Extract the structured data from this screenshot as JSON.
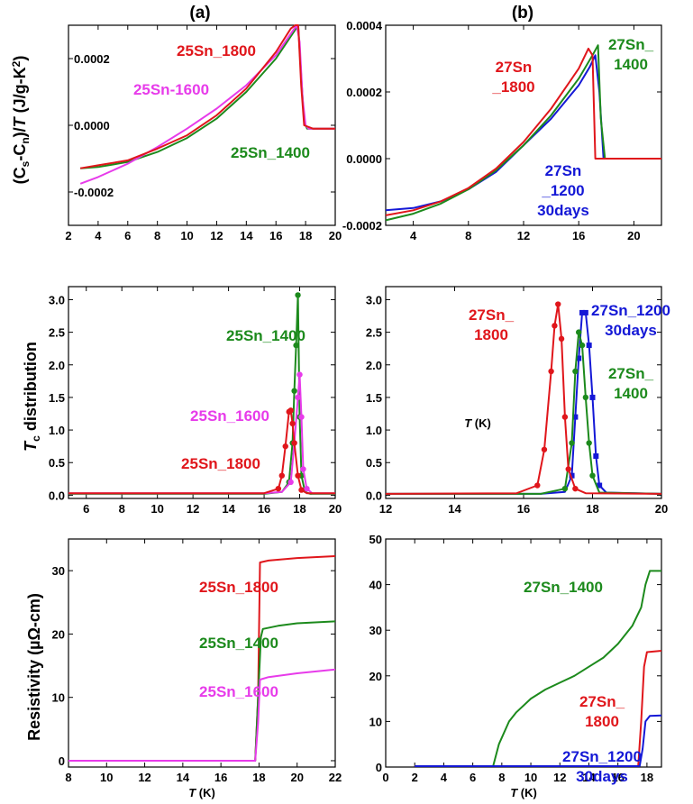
{
  "panel_titles": [
    "(a)",
    "(b)"
  ],
  "colors": {
    "red": "#e0161b",
    "green": "#1c8a1c",
    "magenta": "#e73bea",
    "blue": "#1418d6",
    "axis": "#000000"
  },
  "ylabels": {
    "top": "(Cₛ-Cₙ)/T (J/g-K²)",
    "middle": "T_c distribution",
    "bottom": "Resistivity (µΩ-cm)"
  },
  "chart_data": [
    {
      "id": "a1",
      "type": "line",
      "xlabel": "",
      "ylabel": "(Cs-Cn)/T (J/g-K2)",
      "xlim": [
        2,
        20
      ],
      "ylim": [
        -0.0003,
        0.0003
      ],
      "xticks": [
        2,
        4,
        6,
        8,
        10,
        12,
        14,
        16,
        18,
        20
      ],
      "xtick_labels": [
        "2",
        "4",
        "6",
        "8",
        "10",
        "12",
        "14",
        "16",
        "18",
        "20"
      ],
      "yticks": [
        -0.0002,
        0.0,
        0.0002
      ],
      "ytick_labels": [
        "-0.0002",
        "0.0000",
        "0.0002"
      ],
      "series": [
        {
          "name": "25Sn_1400",
          "color": "green",
          "x": [
            2.8,
            4,
            6,
            8,
            10,
            12,
            14,
            16,
            17.2,
            17.5,
            17.7,
            17.9,
            18.1,
            18.5,
            20
          ],
          "y": [
            -0.000129,
            -0.000125,
            -0.00011,
            -8e-05,
            -3.8e-05,
            2e-05,
            0.0001,
            0.0002,
            0.00028,
            0.0003,
            0.00015,
            1e-05,
            -1e-05,
            -1e-05,
            -1e-05
          ]
        },
        {
          "name": "25Sn-1600",
          "color": "magenta",
          "x": [
            2.8,
            4,
            6,
            8,
            10,
            12,
            14,
            16,
            17.4,
            17.6,
            17.8,
            18.0,
            18.2,
            18.5,
            20
          ],
          "y": [
            -0.000175,
            -0.000155,
            -0.000115,
            -6.5e-05,
            -1e-05,
            5e-05,
            0.00012,
            0.00021,
            0.0003,
            0.00025,
            8e-05,
            0.0,
            -1e-05,
            -1e-05,
            -1e-05
          ]
        },
        {
          "name": "25Sn_1800",
          "color": "red",
          "x": [
            2.8,
            4,
            6,
            8,
            10,
            12,
            14,
            16,
            17.0,
            17.3,
            17.5,
            17.7,
            17.9,
            18.5,
            20
          ],
          "y": [
            -0.000129,
            -0.00012,
            -0.000105,
            -7e-05,
            -3e-05,
            3e-05,
            0.00011,
            0.00022,
            0.00029,
            0.0003,
            0.0003,
            0.00012,
            0.0,
            -1e-05,
            -1e-05
          ]
        }
      ],
      "annotations": [
        "25Sn_1800",
        "25Sn-1600",
        "25Sn_1400"
      ]
    },
    {
      "id": "b1",
      "type": "line",
      "xlabel": "",
      "ylabel": "",
      "xlim": [
        2,
        22
      ],
      "ylim": [
        -0.0002,
        0.0004
      ],
      "xticks": [
        4,
        8,
        12,
        16,
        20
      ],
      "xtick_labels": [
        "4",
        "8",
        "12",
        "16",
        "20"
      ],
      "yticks": [
        -0.0002,
        0.0,
        0.0002,
        0.0004
      ],
      "ytick_labels": [
        "-0.0002",
        "0.0000",
        "0.0002",
        "0.0004"
      ],
      "series": [
        {
          "name": "27Sn_1200 30days",
          "color": "blue",
          "x": [
            2,
            4,
            6,
            8,
            10,
            12,
            14,
            16,
            16.8,
            17.2,
            17.5,
            17.8,
            18.5,
            20,
            22
          ],
          "y": [
            -0.000155,
            -0.000148,
            -0.000128,
            -9.2e-05,
            -4e-05,
            4e-05,
            0.00012,
            0.00022,
            0.000275,
            0.00031,
            0.0002,
            0.0,
            0.0,
            0.0,
            0.0
          ]
        },
        {
          "name": "27Sn_1400",
          "color": "green",
          "x": [
            2,
            4,
            6,
            8,
            10,
            12,
            14,
            16,
            17.0,
            17.4,
            17.6,
            17.9,
            18.3,
            20,
            22
          ],
          "y": [
            -0.000185,
            -0.000165,
            -0.000135,
            -9.2e-05,
            -3.5e-05,
            4e-05,
            0.00013,
            0.00024,
            0.00031,
            0.00034,
            0.00012,
            0.0,
            0.0,
            0.0,
            0.0
          ]
        },
        {
          "name": "27Sn_1800",
          "color": "red",
          "x": [
            2,
            4,
            6,
            8,
            10,
            12,
            14,
            16,
            16.7,
            17.0,
            17.2,
            17.5,
            18,
            20,
            22
          ],
          "y": [
            -0.00017,
            -0.000155,
            -0.000128,
            -8.8e-05,
            -3e-05,
            5e-05,
            0.00015,
            0.00027,
            0.00033,
            0.00031,
            0.0,
            0.0,
            0.0,
            0.0,
            0.0
          ]
        }
      ],
      "annotations": [
        "27Sn _1800",
        "27Sn_ 1400",
        "27Sn _1200 30days"
      ]
    },
    {
      "id": "a2",
      "type": "line",
      "xlabel": "",
      "ylabel": "Tc distribution",
      "xlim": [
        5,
        20
      ],
      "ylim": [
        -0.05,
        3.2
      ],
      "xticks": [
        6,
        8,
        10,
        12,
        14,
        16,
        18,
        20
      ],
      "xtick_labels": [
        "6",
        "8",
        "10",
        "12",
        "14",
        "16",
        "18",
        "20"
      ],
      "yticks": [
        0,
        0.5,
        1,
        1.5,
        2,
        2.5,
        3
      ],
      "ytick_labels": [
        "0.0",
        "0.5",
        "1.0",
        "1.5",
        "2.0",
        "2.5",
        "3.0"
      ],
      "series": [
        {
          "name": "25Sn_1400",
          "color": "green",
          "x": [
            5,
            16,
            17,
            17.4,
            17.6,
            17.7,
            17.8,
            17.9,
            18.0,
            18.1,
            18.3,
            18.6,
            20
          ],
          "y": [
            0.02,
            0.02,
            0.05,
            0.2,
            0.8,
            1.6,
            2.3,
            3.07,
            1.2,
            0.3,
            0.05,
            0.02,
            0.02
          ]
        },
        {
          "name": "25Sn_1600",
          "color": "magenta",
          "x": [
            5,
            16,
            17,
            17.5,
            17.7,
            17.9,
            18.0,
            18.1,
            18.2,
            18.4,
            18.7,
            20
          ],
          "y": [
            0.03,
            0.03,
            0.05,
            0.2,
            0.8,
            1.5,
            1.85,
            1.2,
            0.4,
            0.1,
            0.03,
            0.03
          ]
        },
        {
          "name": "25Sn_1800",
          "color": "red",
          "x": [
            5,
            16,
            16.8,
            17.0,
            17.2,
            17.4,
            17.5,
            17.6,
            17.7,
            17.9,
            18.1,
            18.4,
            20
          ],
          "y": [
            0.03,
            0.03,
            0.1,
            0.3,
            0.75,
            1.28,
            1.3,
            1.1,
            0.8,
            0.3,
            0.08,
            0.03,
            0.03
          ]
        }
      ],
      "annotations": [
        "25Sn_1400",
        "25Sn_1600",
        "25Sn_1800"
      ]
    },
    {
      "id": "b2",
      "type": "line",
      "xlabel": "T (K)",
      "ylabel": "",
      "xlim": [
        12,
        20
      ],
      "ylim": [
        -0.05,
        3.2
      ],
      "xticks": [
        12,
        14,
        16,
        18,
        20
      ],
      "xtick_labels": [
        "12",
        "14",
        "16",
        "18",
        "20"
      ],
      "yticks": [
        0,
        0.5,
        1,
        1.5,
        2,
        2.5,
        3
      ],
      "ytick_labels": [
        "0.0",
        "0.5",
        "1.0",
        "1.5",
        "2.0",
        "2.5",
        "3.0"
      ],
      "series": [
        {
          "name": "27Sn_1200 30days",
          "color": "blue",
          "x": [
            12,
            16.5,
            17.2,
            17.4,
            17.5,
            17.6,
            17.7,
            17.8,
            17.9,
            18.0,
            18.1,
            18.2,
            18.4,
            20
          ],
          "y": [
            0.02,
            0.02,
            0.05,
            0.3,
            1.2,
            2.1,
            2.8,
            2.8,
            2.3,
            1.5,
            0.6,
            0.15,
            0.04,
            0.02
          ]
        },
        {
          "name": "27Sn_1400",
          "color": "green",
          "x": [
            12,
            16.5,
            17.2,
            17.4,
            17.5,
            17.6,
            17.7,
            17.8,
            17.9,
            18.0,
            18.2,
            20
          ],
          "y": [
            0.02,
            0.02,
            0.1,
            0.8,
            1.9,
            2.5,
            2.3,
            1.5,
            0.8,
            0.3,
            0.04,
            0.02
          ]
        },
        {
          "name": "27Sn_1800",
          "color": "red",
          "x": [
            12,
            15.8,
            16.4,
            16.6,
            16.8,
            16.9,
            17.0,
            17.1,
            17.2,
            17.3,
            17.5,
            17.8,
            20
          ],
          "y": [
            0.02,
            0.03,
            0.15,
            0.7,
            1.9,
            2.6,
            2.93,
            2.4,
            1.2,
            0.4,
            0.1,
            0.03,
            0.02
          ]
        }
      ],
      "annotations": [
        "27Sn_ 1800",
        "27Sn_1200 30days",
        "27Sn_ 1400"
      ]
    },
    {
      "id": "a3",
      "type": "line",
      "xlabel": "T (K)",
      "ylabel": "Resistivity (µΩ-cm)",
      "xlim": [
        8,
        22
      ],
      "ylim": [
        -1,
        35
      ],
      "xticks": [
        8,
        10,
        12,
        14,
        16,
        18,
        20,
        22
      ],
      "xtick_labels": [
        "8",
        "10",
        "12",
        "14",
        "16",
        "18",
        "20",
        "22"
      ],
      "yticks": [
        0,
        10,
        20,
        30
      ],
      "ytick_labels": [
        "0",
        "10",
        "20",
        "30"
      ],
      "series": [
        {
          "name": "25Sn_1800",
          "color": "red",
          "x": [
            8,
            17.8,
            17.95,
            18.05,
            18.5,
            20,
            22
          ],
          "y": [
            0,
            0,
            10,
            31.3,
            31.6,
            32.0,
            32.3
          ]
        },
        {
          "name": "25Sn_1400",
          "color": "green",
          "x": [
            8,
            17.8,
            17.95,
            18.1,
            18.2,
            19,
            20,
            22
          ],
          "y": [
            0,
            0,
            10,
            19.5,
            20.8,
            21.3,
            21.7,
            22.0
          ]
        },
        {
          "name": "25Sn_1600",
          "color": "magenta",
          "x": [
            8,
            17.8,
            17.95,
            18.05,
            18.5,
            20,
            22
          ],
          "y": [
            0,
            0,
            6,
            12.8,
            13.2,
            13.8,
            14.4
          ]
        }
      ],
      "annotations": [
        "25Sn_1800",
        "25Sn_1400",
        "25Sn_1600"
      ]
    },
    {
      "id": "b3",
      "type": "line",
      "xlabel": "T (K)",
      "ylabel": "",
      "xlim": [
        0,
        19
      ],
      "ylim": [
        0,
        50
      ],
      "xticks": [
        0,
        2,
        4,
        6,
        8,
        10,
        12,
        14,
        16,
        18
      ],
      "xtick_labels": [
        "0",
        "2",
        "4",
        "6",
        "8",
        "10",
        "12",
        "14",
        "16",
        "18"
      ],
      "yticks": [
        0,
        10,
        20,
        30,
        40,
        50
      ],
      "ytick_labels": [
        "0",
        "10",
        "20",
        "30",
        "40",
        "50"
      ],
      "series": [
        {
          "name": "27Sn_1400",
          "color": "green",
          "x": [
            2,
            7.4,
            7.8,
            8.5,
            9,
            10,
            11,
            12,
            13,
            14,
            15,
            16,
            17,
            17.6,
            17.9,
            18.2,
            19
          ],
          "y": [
            0.2,
            0.2,
            5,
            10,
            12,
            15,
            17,
            18.5,
            20,
            22,
            24,
            27,
            31,
            35,
            40,
            43,
            43
          ]
        },
        {
          "name": "27Sn_1800",
          "color": "red",
          "x": [
            2,
            17.4,
            17.6,
            17.8,
            18,
            19
          ],
          "y": [
            0.2,
            0.2,
            10,
            22,
            25.2,
            25.5
          ]
        },
        {
          "name": "27Sn_1200 30days",
          "color": "blue",
          "x": [
            2,
            17.5,
            17.7,
            17.9,
            18.2,
            19
          ],
          "y": [
            0.2,
            0.2,
            4,
            10,
            11.2,
            11.3
          ]
        }
      ],
      "annotations": [
        "27Sn_1400",
        "27Sn_ 1800",
        "27Sn_1200 30days"
      ]
    }
  ]
}
